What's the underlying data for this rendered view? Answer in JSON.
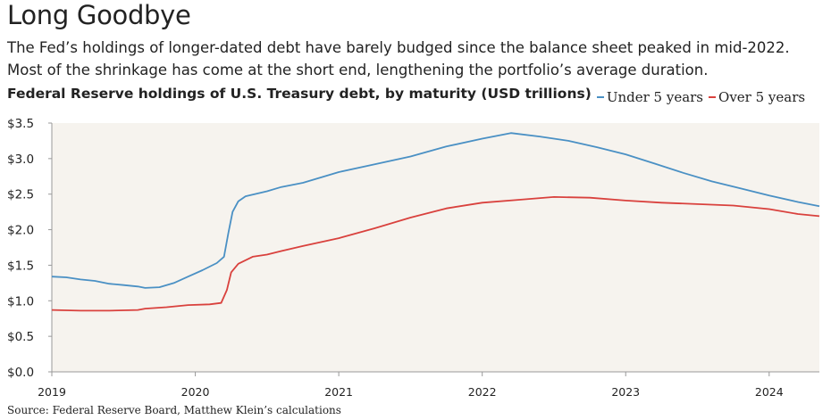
{
  "header": {
    "title": "Long Goodbye",
    "subtitle": "The Fed’s holdings of longer-dated debt have barely budged since the balance sheet peaked in mid-2022. Most of the shrinkage has come at the short end, lengthening the portfolio’s average duration."
  },
  "source": "Source: Federal Reserve Board, Matthew Klein’s calculations",
  "colors": {
    "under5": "#4a90c4",
    "over5": "#d9413d",
    "plot_bg": "#f6f3ee",
    "axis": "#999999"
  },
  "chart_data": {
    "type": "line",
    "title": "Federal Reserve holdings of U.S. Treasury debt, by maturity (USD trillions)",
    "xlabel": "",
    "ylabel": "",
    "xlim": [
      2019.0,
      2024.35
    ],
    "ylim": [
      0,
      3.5
    ],
    "x_ticks": [
      2019,
      2020,
      2021,
      2022,
      2023,
      2024
    ],
    "x_tick_labels": [
      "2019",
      "2020",
      "2021",
      "2022",
      "2023",
      "2024"
    ],
    "y_ticks": [
      0,
      0.5,
      1.0,
      1.5,
      2.0,
      2.5,
      3.0,
      3.5
    ],
    "y_tick_labels": [
      "$0.0",
      "$0.5",
      "$1.0",
      "$1.5",
      "$2.0",
      "$2.5",
      "$3.0",
      "$3.5"
    ],
    "grid": false,
    "legend_position": "top-right, beside title",
    "series": [
      {
        "name": "Under 5 years",
        "color": "#4a90c4",
        "points": [
          [
            2019.0,
            1.34
          ],
          [
            2019.1,
            1.33
          ],
          [
            2019.2,
            1.3
          ],
          [
            2019.3,
            1.28
          ],
          [
            2019.4,
            1.24
          ],
          [
            2019.5,
            1.22
          ],
          [
            2019.6,
            1.2
          ],
          [
            2019.65,
            1.18
          ],
          [
            2019.75,
            1.19
          ],
          [
            2019.85,
            1.25
          ],
          [
            2019.95,
            1.34
          ],
          [
            2020.05,
            1.43
          ],
          [
            2020.15,
            1.53
          ],
          [
            2020.2,
            1.62
          ],
          [
            2020.23,
            1.95
          ],
          [
            2020.26,
            2.25
          ],
          [
            2020.3,
            2.4
          ],
          [
            2020.35,
            2.47
          ],
          [
            2020.5,
            2.54
          ],
          [
            2020.6,
            2.6
          ],
          [
            2020.75,
            2.66
          ],
          [
            2021.0,
            2.81
          ],
          [
            2021.25,
            2.92
          ],
          [
            2021.5,
            3.03
          ],
          [
            2021.75,
            3.17
          ],
          [
            2022.0,
            3.28
          ],
          [
            2022.2,
            3.36
          ],
          [
            2022.4,
            3.31
          ],
          [
            2022.6,
            3.25
          ],
          [
            2022.8,
            3.16
          ],
          [
            2023.0,
            3.06
          ],
          [
            2023.2,
            2.93
          ],
          [
            2023.4,
            2.8
          ],
          [
            2023.6,
            2.68
          ],
          [
            2023.8,
            2.58
          ],
          [
            2024.0,
            2.48
          ],
          [
            2024.2,
            2.39
          ],
          [
            2024.35,
            2.33
          ]
        ]
      },
      {
        "name": "Over 5 years",
        "color": "#d9413d",
        "points": [
          [
            2019.0,
            0.87
          ],
          [
            2019.2,
            0.86
          ],
          [
            2019.4,
            0.86
          ],
          [
            2019.6,
            0.87
          ],
          [
            2019.65,
            0.89
          ],
          [
            2019.8,
            0.91
          ],
          [
            2019.95,
            0.94
          ],
          [
            2020.1,
            0.95
          ],
          [
            2020.18,
            0.97
          ],
          [
            2020.22,
            1.15
          ],
          [
            2020.25,
            1.4
          ],
          [
            2020.3,
            1.52
          ],
          [
            2020.4,
            1.62
          ],
          [
            2020.5,
            1.65
          ],
          [
            2020.6,
            1.7
          ],
          [
            2020.75,
            1.77
          ],
          [
            2021.0,
            1.88
          ],
          [
            2021.25,
            2.02
          ],
          [
            2021.5,
            2.17
          ],
          [
            2021.75,
            2.3
          ],
          [
            2022.0,
            2.38
          ],
          [
            2022.25,
            2.42
          ],
          [
            2022.5,
            2.46
          ],
          [
            2022.75,
            2.45
          ],
          [
            2023.0,
            2.41
          ],
          [
            2023.25,
            2.38
          ],
          [
            2023.5,
            2.36
          ],
          [
            2023.75,
            2.34
          ],
          [
            2024.0,
            2.29
          ],
          [
            2024.2,
            2.22
          ],
          [
            2024.35,
            2.19
          ]
        ]
      }
    ]
  }
}
